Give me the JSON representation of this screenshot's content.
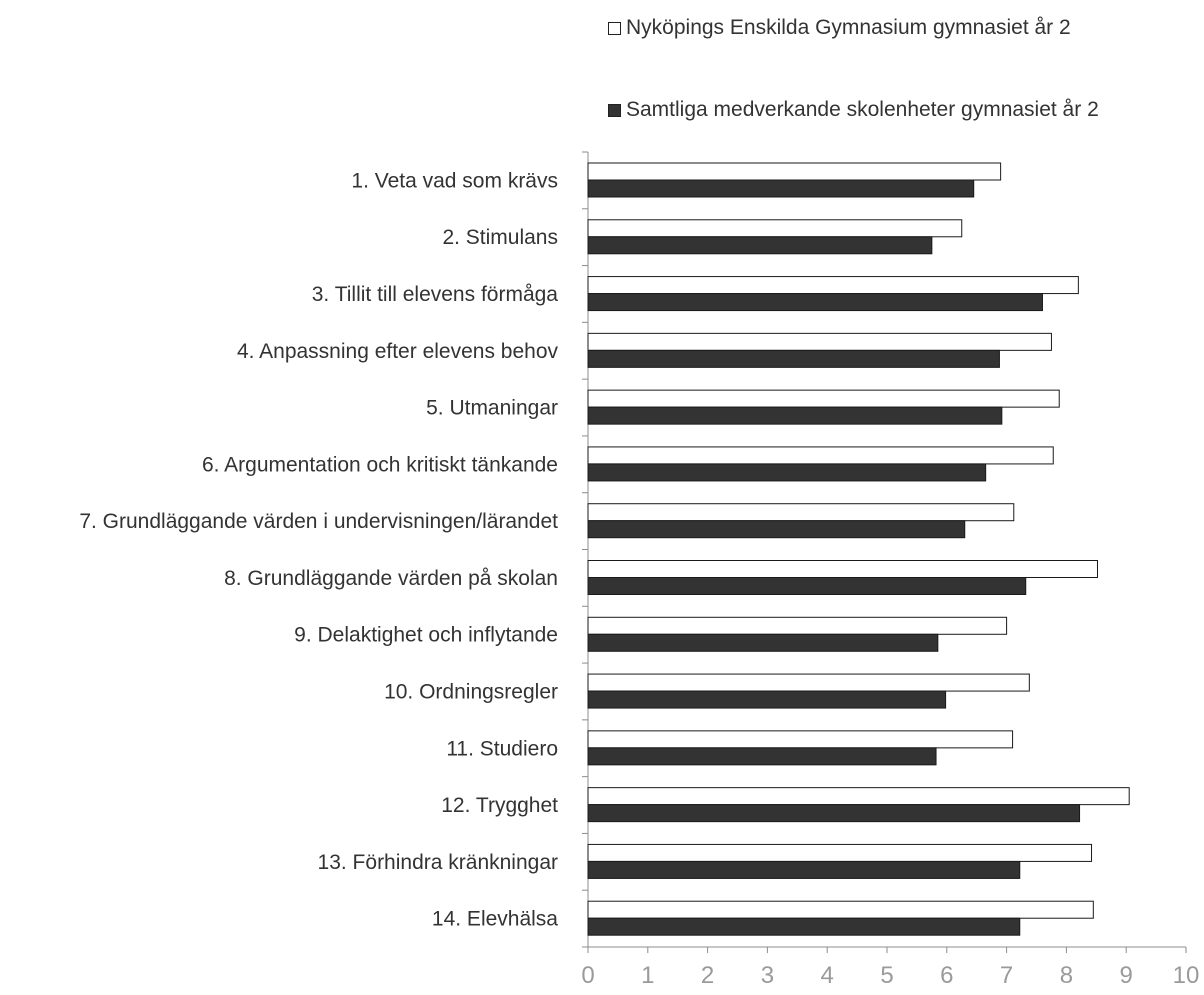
{
  "chart_data": {
    "type": "bar",
    "orientation": "horizontal",
    "categories": [
      "1. Veta vad som krävs",
      "2. Stimulans",
      "3. Tillit till elevens förmåga",
      "4. Anpassning efter elevens behov",
      "5. Utmaningar",
      "6. Argumentation och kritiskt tänkande",
      "7. Grundläggande värden i undervisningen/lärandet",
      "8. Grundläggande värden på skolan",
      "9. Delaktighet och inflytande",
      "10. Ordningsregler",
      "11. Studiero",
      "12. Trygghet",
      "13. Förhindra kränkningar",
      "14. Elevhälsa"
    ],
    "series": [
      {
        "name": "Nyköpings Enskilda Gymnasium gymnasiet år 2",
        "color": "#ffffff",
        "values": [
          6.9,
          6.25,
          8.2,
          7.75,
          7.88,
          7.78,
          7.12,
          8.52,
          7.0,
          7.38,
          7.1,
          9.05,
          8.42,
          8.45
        ]
      },
      {
        "name": "Samtliga medverkande skolenheter gymnasiet år 2",
        "color": "#333333",
        "values": [
          6.45,
          5.75,
          7.6,
          6.88,
          6.92,
          6.65,
          6.3,
          7.32,
          5.85,
          5.98,
          5.82,
          8.22,
          7.22,
          7.22
        ]
      }
    ],
    "xlim": [
      0,
      10
    ],
    "xticks": [
      "0",
      "1",
      "2",
      "3",
      "4",
      "5",
      "6",
      "7",
      "8",
      "9",
      "10"
    ],
    "legend_position": "top-right",
    "grid": false,
    "title": "",
    "xlabel": "",
    "ylabel": ""
  }
}
